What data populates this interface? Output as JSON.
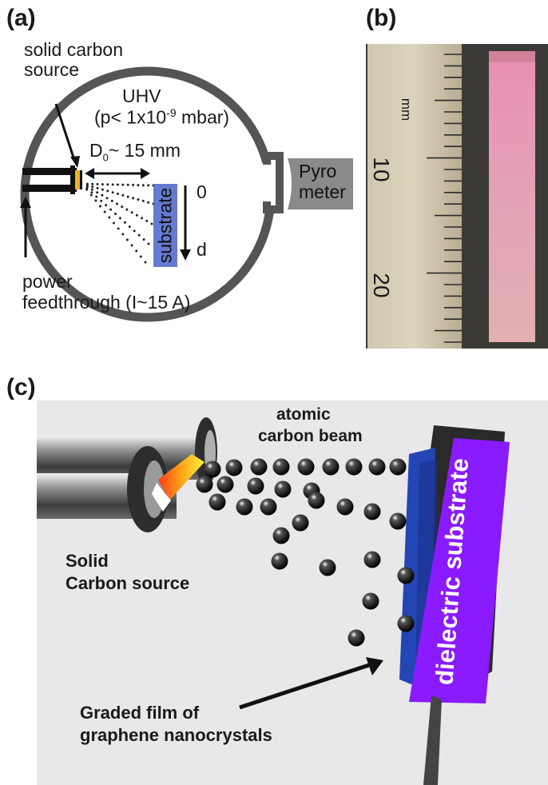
{
  "panel_a": {
    "label": "(a)",
    "source_line1": "solid carbon",
    "source_line2": "source",
    "uhv": "UHV",
    "pressure_pre": "(p< 1x10",
    "pressure_exp": "-9",
    "pressure_post": " mbar)",
    "distance_main": "D",
    "distance_sub": "0",
    "distance_post": "~ 15 mm",
    "axis_zero": "0",
    "axis_d": "d",
    "substrate": "substrate",
    "pyro_line1": "Pyro",
    "pyro_line2": "meter",
    "power_line1": "power",
    "power_line2": "feedthrough (I~15 A)"
  },
  "panel_b": {
    "label": "(b)",
    "unit": "mm",
    "tick_10": "10",
    "tick_20": "20"
  },
  "panel_c": {
    "label": "(c)",
    "beam_line1": "atomic",
    "beam_line2": "carbon beam",
    "source_line1": "Solid",
    "source_line2": "Carbon source",
    "film_line1": "Graded film of",
    "film_line2": "graphene nanocrystals",
    "substrate": "dielectric substrate"
  },
  "colors": {
    "chamber": "#555555",
    "substrate_blue": "#4a63c8",
    "substrate_purple": "#8a1aff",
    "pyrometer": "#8a8a8a",
    "sample_pink": "#e3a6b4",
    "ruler": "#c9bfa4"
  }
}
